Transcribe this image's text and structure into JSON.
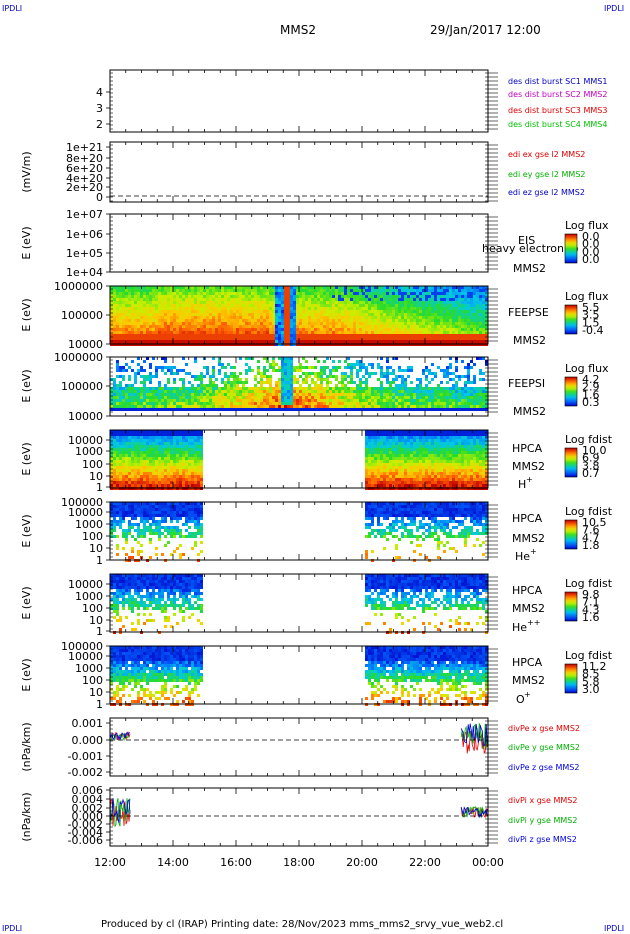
{
  "corner_labels": [
    "IPDLI",
    "IPDLI",
    "IPDLI",
    "IPDLI"
  ],
  "header": {
    "spacecraft": "MMS2",
    "datetime": "29/Jan/2017 12:00"
  },
  "footer": "Produced by cl (IRAP)   Printing date: 28/Nov/2023   mms_mms2_srvy_vue_web2.cl",
  "colors": {
    "des_c1": "#0000c0",
    "des_c2": "#c000c0",
    "des_c3": "#e00000",
    "des_c4": "#00c000",
    "x_comp": "#e00000",
    "y_comp": "#00b000",
    "z_comp": "#0000e0"
  },
  "chart_data": [
    {
      "type": "line",
      "name": "panel-des-burst",
      "ylim": [
        0.5,
        4.5
      ],
      "yticks": [
        "1",
        "2",
        "3",
        "4"
      ],
      "series": [
        {
          "name": "des dist burst SC1 MMS1",
          "color": "#0000c0"
        },
        {
          "name": "des dist burst SC2 MMS2",
          "color": "#c000c0"
        },
        {
          "name": "des dist burst SC3 MMS3",
          "color": "#e00000"
        },
        {
          "name": "des dist burst SC4 MMS4",
          "color": "#00c000"
        }
      ]
    },
    {
      "type": "line",
      "name": "panel-edi",
      "ylabel": "(mV/m)",
      "yticks": [
        "0",
        "2e+20",
        "4e+20",
        "6e+20",
        "8e+20",
        "1e+21"
      ],
      "series": [
        {
          "name": "edi ex gse l2 MMS2",
          "color": "#e00000"
        },
        {
          "name": "edi ey gse l2 MMS2",
          "color": "#00b000"
        },
        {
          "name": "edi ez gse l2 MMS2",
          "color": "#0000c0"
        }
      ]
    },
    {
      "type": "heatmap",
      "name": "panel-eis",
      "ylabel": "E (eV)",
      "yticks": [
        "1e+04",
        "1e+05",
        "1e+06",
        "1e+07"
      ],
      "log_y": true,
      "labels": [
        "EIS",
        "MMS2"
      ],
      "overlay_text": "heavy electron to",
      "colorbar": {
        "title": "Log flux",
        "ticks": [
          "0.0",
          "0.0",
          "0.0",
          "0.0"
        ]
      }
    },
    {
      "type": "heatmap",
      "name": "panel-feepse",
      "ylabel": "E (eV)",
      "yticks": [
        "10000",
        "100000",
        "1000000"
      ],
      "log_y": true,
      "labels": [
        "FEEPSE",
        "MMS2"
      ],
      "colorbar": {
        "title": "Log flux",
        "ticks": [
          "5.5",
          "3.5",
          "1.5",
          "-0.4"
        ]
      }
    },
    {
      "type": "heatmap",
      "name": "panel-feepsi",
      "ylabel": "E (eV)",
      "yticks": [
        "10000",
        "100000",
        "1000000"
      ],
      "log_y": true,
      "labels": [
        "FEEPSI",
        "MMS2"
      ],
      "colorbar": {
        "title": "Log flux",
        "ticks": [
          "4.2",
          "2.9",
          "1.6",
          "0.3"
        ]
      }
    },
    {
      "type": "heatmap",
      "name": "panel-hpca-h",
      "ylabel": "E (eV)",
      "yticks": [
        "1",
        "10",
        "100",
        "1000",
        "10000"
      ],
      "log_y": true,
      "labels": [
        "HPCA",
        "MMS2",
        "H",
        "+"
      ],
      "colorbar": {
        "title": "Log fdist",
        "ticks": [
          "10.0",
          "6.9",
          "3.8",
          "0.7"
        ]
      }
    },
    {
      "type": "heatmap",
      "name": "panel-hpca-he",
      "ylabel": "E (eV)",
      "yticks": [
        "1",
        "10",
        "100",
        "1000",
        "10000",
        "100000"
      ],
      "log_y": true,
      "labels": [
        "HPCA",
        "MMS2",
        "He",
        "+"
      ],
      "colorbar": {
        "title": "Log fdist",
        "ticks": [
          "10.5",
          "7.6",
          "4.7",
          "1.8"
        ]
      }
    },
    {
      "type": "heatmap",
      "name": "panel-hpca-he2",
      "ylabel": "E (eV)",
      "yticks": [
        "1",
        "10",
        "100",
        "1000",
        "10000"
      ],
      "log_y": true,
      "labels": [
        "HPCA",
        "MMS2",
        "He",
        "++"
      ],
      "colorbar": {
        "title": "Log fdist",
        "ticks": [
          "9.8",
          "7.1",
          "4.3",
          "1.6"
        ]
      }
    },
    {
      "type": "heatmap",
      "name": "panel-hpca-o",
      "ylabel": "E (eV)",
      "yticks": [
        "1",
        "10",
        "100",
        "1000",
        "10000",
        "100000"
      ],
      "log_y": true,
      "labels": [
        "HPCA",
        "MMS2",
        "O",
        "+"
      ],
      "colorbar": {
        "title": "Log fdist",
        "ticks": [
          "11.2",
          "8.5",
          "5.8",
          "3.0"
        ]
      }
    },
    {
      "type": "line",
      "name": "panel-divpe",
      "ylabel": "(nPa/km)",
      "ylim": [
        -0.002,
        0.0015
      ],
      "yticks": [
        "-0.002",
        "-0.001",
        "0.000",
        "0.001"
      ],
      "series": [
        {
          "name": "divPe x gse MMS2",
          "color": "#e00000"
        },
        {
          "name": "divPe y gse MMS2",
          "color": "#00b000"
        },
        {
          "name": "divPe z gse MMS2",
          "color": "#0000e0"
        }
      ]
    },
    {
      "type": "line",
      "name": "panel-divpi",
      "ylabel": "(nPa/km)",
      "ylim": [
        -0.007,
        0.007
      ],
      "yticks": [
        "-0.006",
        "-0.004",
        "-0.002",
        "0.000",
        "0.002",
        "0.004",
        "0.006"
      ],
      "series": [
        {
          "name": "divPi x gse MMS2",
          "color": "#e00000"
        },
        {
          "name": "divPi y gse MMS2",
          "color": "#00b000"
        },
        {
          "name": "divPi z gse MMS2",
          "color": "#0000e0"
        }
      ]
    }
  ],
  "time_axis": {
    "ticks": [
      "12:00",
      "14:00",
      "16:00",
      "18:00",
      "20:00",
      "22:00",
      "00:00"
    ],
    "range_hours": [
      12,
      24
    ]
  }
}
